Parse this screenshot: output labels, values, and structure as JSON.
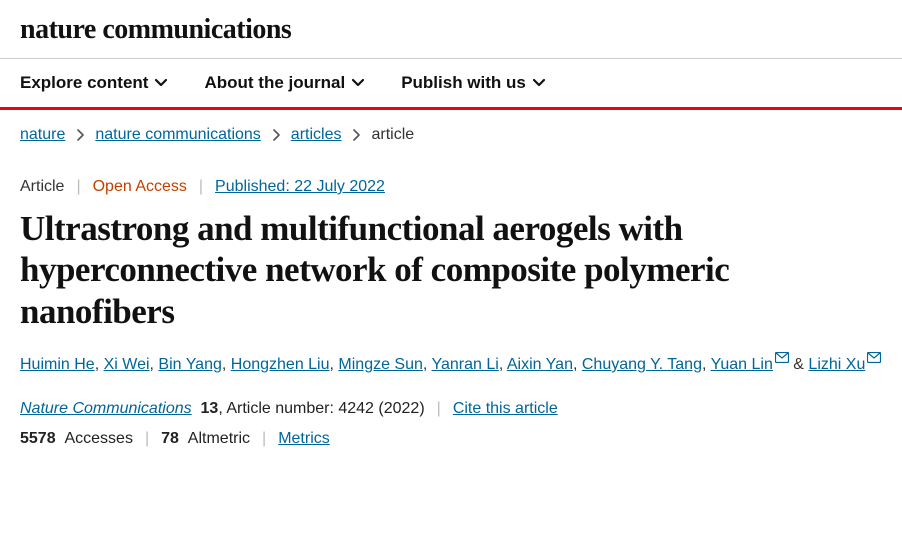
{
  "brand": "nature communications",
  "nav": {
    "explore": "Explore content",
    "about": "About the journal",
    "publish": "Publish with us"
  },
  "breadcrumb": {
    "items": [
      {
        "label": "nature",
        "link": true
      },
      {
        "label": "nature communications",
        "link": true
      },
      {
        "label": "articles",
        "link": true
      },
      {
        "label": "article",
        "link": false
      }
    ]
  },
  "meta": {
    "type": "Article",
    "access": "Open Access",
    "published_label": "Published: 22 July 2022"
  },
  "title": "Ultrastrong and multifunctional aerogels with hyperconnective network of composite polymeric nanofibers",
  "authors": {
    "list": [
      {
        "name": "Huimin He",
        "mail": false
      },
      {
        "name": "Xi Wei",
        "mail": false
      },
      {
        "name": "Bin Yang",
        "mail": false
      },
      {
        "name": "Hongzhen Liu",
        "mail": false
      },
      {
        "name": "Mingze Sun",
        "mail": false
      },
      {
        "name": "Yanran Li",
        "mail": false
      },
      {
        "name": "Aixin Yan",
        "mail": false
      },
      {
        "name": "Chuyang Y. Tang",
        "mail": false
      },
      {
        "name": "Yuan Lin",
        "mail": true
      },
      {
        "name": "Lizhi Xu",
        "mail": true
      }
    ],
    "amp": "&"
  },
  "citation": {
    "journal": "Nature Communications",
    "volume": "13",
    "article_label": ", Article number: 4242 (2022)",
    "cite": "Cite this article"
  },
  "metrics": {
    "accesses_n": "5578",
    "accesses_l": "Accesses",
    "altmetric_n": "78",
    "altmetric_l": "Altmetric",
    "metrics_link": "Metrics"
  },
  "colors": {
    "accent_red": "#e30613",
    "link_blue": "#006699",
    "open_access": "#c04000"
  }
}
